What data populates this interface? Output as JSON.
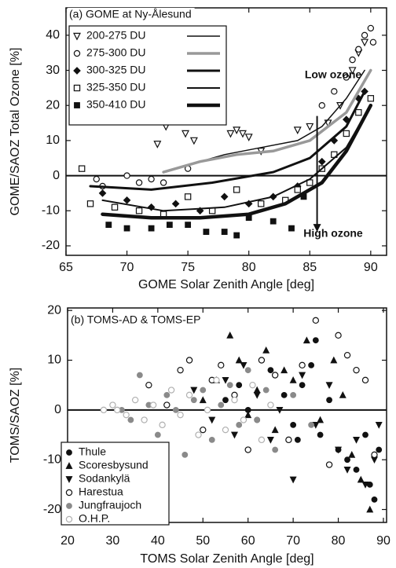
{
  "chart_data": [
    {
      "type": "scatter",
      "title": "(a) GOME at Ny-Ålesund",
      "x_label": "GOME Solar Zenith Angle [deg]",
      "y_label": "GOME/SAOZ Total Ozone [%]",
      "xlim": [
        65,
        91.3
      ],
      "ylim": [
        -22.7,
        47.8
      ],
      "xticks": [
        65,
        70,
        75,
        80,
        85,
        90
      ],
      "yticks": [
        -20,
        -10,
        0,
        10,
        20,
        30,
        40
      ],
      "hline": 0,
      "annotations": [
        "Low ozone",
        "High ozone"
      ],
      "arrow_x": 85.6,
      "arrow_y": [
        17,
        -16
      ],
      "series": [
        {
          "name": "200-275 DU",
          "marker": "tri-down-open",
          "color": "#111",
          "line_color": "#111",
          "line_width": 1.5,
          "x": [
            72.5,
            73.2,
            74,
            74.8,
            75.5,
            78.5,
            79,
            79.5,
            80,
            81,
            86.5,
            87.5,
            88.5,
            89,
            89.5,
            84,
            85
          ],
          "values": [
            9,
            14,
            16,
            12,
            10,
            12,
            13,
            12,
            11,
            7,
            15,
            20,
            30,
            35,
            38,
            13,
            14
          ],
          "fit_x": [
            75,
            78,
            81,
            84,
            86,
            88,
            89.5
          ],
          "fit_y": [
            3,
            6,
            8,
            10,
            14,
            22,
            30
          ]
        },
        {
          "name": "275-300 DU",
          "marker": "circle-open",
          "color": "#111",
          "line_color": "#999",
          "line_width": 3.5,
          "x": [
            67.5,
            68,
            70,
            71,
            72,
            73,
            86,
            87,
            88,
            88.5,
            89,
            89.5,
            90,
            90.2,
            75
          ],
          "values": [
            -1,
            -3,
            0,
            -2,
            -1,
            -2,
            20,
            24,
            28,
            33,
            36,
            40,
            42,
            38,
            2
          ],
          "fit_x": [
            73,
            76,
            79,
            82,
            85,
            88,
            90
          ],
          "fit_y": [
            1,
            4,
            6,
            7,
            10,
            18,
            30
          ]
        },
        {
          "name": "300-325 DU",
          "marker": "diamond",
          "color": "#111",
          "line_color": "#111",
          "line_width": 3,
          "x": [
            68,
            70,
            72,
            74,
            76,
            78,
            80,
            82,
            84,
            86,
            87,
            88,
            89,
            89.5
          ],
          "values": [
            -5,
            -7,
            -9,
            -8,
            -10,
            -6,
            -8,
            -6,
            -3,
            4,
            10,
            16,
            22,
            24
          ],
          "fit_x": [
            67,
            72,
            77,
            82,
            85,
            88,
            89.5
          ],
          "fit_y": [
            -3,
            -4,
            -2,
            1,
            5,
            14,
            24
          ]
        },
        {
          "name": "325-350 DU",
          "marker": "square-open",
          "color": "#111",
          "line_color": "#111",
          "line_width": 2,
          "x": [
            66.3,
            67,
            69,
            71,
            73,
            75,
            77,
            79,
            81,
            83,
            84,
            85,
            86,
            87,
            88,
            89,
            90
          ],
          "values": [
            2,
            -8,
            -9,
            -10,
            -11,
            -6,
            -10,
            -4,
            -8,
            -7,
            -4,
            -2,
            2,
            6,
            12,
            18,
            22
          ],
          "fit_x": [
            68,
            73,
            78,
            82,
            85,
            88,
            90
          ],
          "fit_y": [
            -7,
            -10,
            -9,
            -6,
            -1,
            8,
            20
          ]
        },
        {
          "name": "350-410 DU",
          "marker": "square",
          "color": "#111",
          "line_color": "#111",
          "line_width": 4.5,
          "x": [
            68.5,
            70,
            72,
            73.5,
            75,
            76.5,
            78,
            79,
            80,
            82,
            83.5,
            84.5
          ],
          "values": [
            -14,
            -15,
            -15,
            -14,
            -14,
            -16,
            -16,
            -17,
            -12,
            -13,
            -15,
            -6
          ],
          "fit_x": [
            68,
            72,
            76,
            80,
            83,
            86,
            88,
            90
          ],
          "fit_y": [
            -11,
            -12,
            -12,
            -11,
            -8,
            -2,
            7,
            20
          ]
        }
      ]
    },
    {
      "type": "scatter",
      "title": "(b) TOMS-AD & TOMS-EP",
      "x_label": "TOMS Solar Zenith Angle [deg]",
      "y_label": "TOMS/SAOZ [%]",
      "xlim": [
        20,
        90.7
      ],
      "ylim": [
        -22.6,
        20.5
      ],
      "xticks": [
        20,
        30,
        40,
        50,
        60,
        70,
        80,
        90
      ],
      "yticks": [
        -20,
        -10,
        0,
        10,
        20
      ],
      "hline": 0,
      "series": [
        {
          "name": "Thule",
          "marker": "circle",
          "color": "#111",
          "x": [
            55,
            58,
            60,
            62,
            65,
            68,
            70,
            72,
            74,
            76,
            78,
            80,
            82,
            84,
            86,
            87,
            88,
            89,
            75,
            71
          ],
          "values": [
            2,
            5,
            0,
            -2,
            8,
            3,
            -3,
            5,
            9,
            -5,
            2,
            -8,
            -10,
            -12,
            -5,
            -15,
            -18,
            -8,
            14,
            -6
          ]
        },
        {
          "name": "Scoresbysund",
          "marker": "tri",
          "color": "#111",
          "x": [
            50,
            53,
            56,
            58,
            60,
            62,
            64,
            66,
            68,
            70,
            73,
            76,
            79,
            81,
            83,
            85,
            87
          ],
          "values": [
            2,
            6,
            15,
            10,
            -1,
            4,
            12,
            -4,
            8,
            6,
            14,
            -2,
            10,
            3,
            -9,
            -14,
            -20
          ]
        },
        {
          "name": "Sodankylä",
          "marker": "tri-down",
          "color": "#111",
          "x": [
            48,
            52,
            55,
            57,
            59,
            62,
            65,
            67,
            70,
            72,
            75,
            78,
            80,
            82,
            84,
            86,
            88,
            89
          ],
          "values": [
            4,
            -2,
            6,
            -5,
            9,
            3,
            -6,
            0,
            -14,
            7,
            -3,
            5,
            -8,
            -12,
            -6,
            -15,
            -10,
            -3
          ]
        },
        {
          "name": "Harestua",
          "marker": "circle-open",
          "color": "#111",
          "x": [
            38,
            42,
            45,
            47,
            50,
            52,
            54,
            57,
            60,
            63,
            66,
            69,
            72,
            75,
            78,
            80,
            82,
            84,
            86,
            88
          ],
          "values": [
            5,
            1,
            8,
            10,
            -4,
            6,
            9,
            3,
            -8,
            10,
            7,
            -6,
            9,
            18,
            -11,
            15,
            11,
            8,
            6,
            -9
          ]
        },
        {
          "name": "Jungfraujoch",
          "marker": "circle",
          "color": "#8a8a8a",
          "x": [
            32,
            34,
            36,
            38,
            40,
            42,
            44,
            46,
            48,
            50,
            52,
            54,
            56,
            58,
            60,
            62,
            64,
            66,
            70,
            74
          ],
          "values": [
            0,
            -2,
            7,
            1,
            -5,
            3,
            0,
            -9,
            2,
            4,
            -6,
            1,
            5,
            -3,
            8,
            -2,
            4,
            -8,
            3,
            -3
          ]
        },
        {
          "name": "O.H.P.",
          "marker": "circle-open",
          "color": "#b0b0b0",
          "x": [
            28,
            30,
            31,
            33,
            35,
            37,
            39,
            41,
            43,
            45,
            47,
            49,
            51,
            53,
            55,
            57,
            59,
            61,
            63,
            65
          ],
          "values": [
            0,
            1,
            0,
            -1,
            2,
            -2,
            1,
            -3,
            4,
            -1,
            3,
            -5,
            0,
            6,
            -4,
            2,
            -2,
            5,
            -6,
            1
          ]
        }
      ]
    }
  ]
}
